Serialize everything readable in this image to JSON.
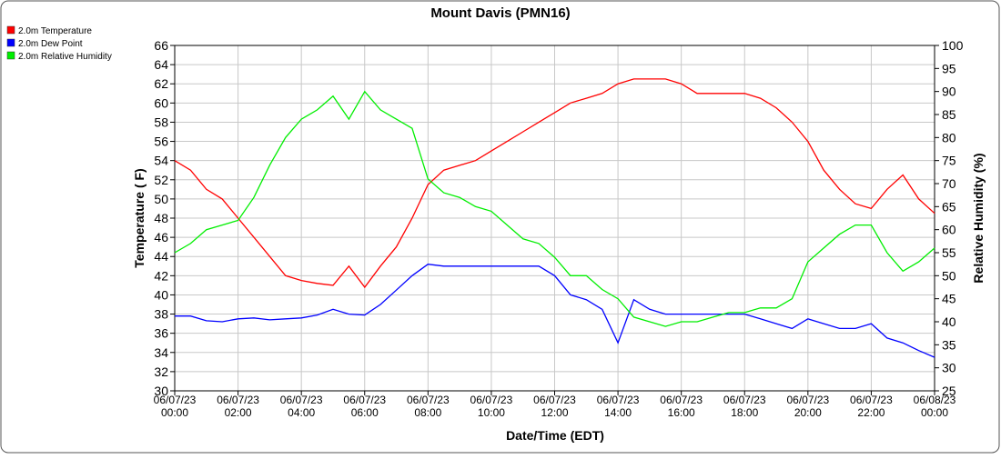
{
  "chart_data": {
    "type": "line",
    "title": "Mount Davis (PMN16)",
    "x_label": "Date/Time (EDT)",
    "y_label": "Temperature ( F)",
    "y2_label": "Relative Humidity (%)",
    "x": [
      0,
      0.5,
      1,
      1.5,
      2,
      2.5,
      3,
      3.5,
      4,
      4.5,
      5,
      5.5,
      6,
      6.5,
      7,
      7.5,
      8,
      8.5,
      9,
      9.5,
      10,
      10.5,
      11,
      11.5,
      12,
      12.5,
      13,
      13.5,
      14,
      14.5,
      15,
      15.5,
      16,
      16.5,
      17,
      17.5,
      18,
      18.5,
      19,
      19.5,
      20,
      20.5,
      21,
      21.5,
      22,
      22.5,
      23,
      23.5,
      24
    ],
    "xlim": [
      0,
      24
    ],
    "xticks": [
      {
        "value": 0,
        "label": "06/07/23\n00:00"
      },
      {
        "value": 2,
        "label": "06/07/23\n02:00"
      },
      {
        "value": 4,
        "label": "06/07/23\n04:00"
      },
      {
        "value": 6,
        "label": "06/07/23\n06:00"
      },
      {
        "value": 8,
        "label": "06/07/23\n08:00"
      },
      {
        "value": 10,
        "label": "06/07/23\n10:00"
      },
      {
        "value": 12,
        "label": "06/07/23\n12:00"
      },
      {
        "value": 14,
        "label": "06/07/23\n14:00"
      },
      {
        "value": 16,
        "label": "06/07/23\n16:00"
      },
      {
        "value": 18,
        "label": "06/07/23\n18:00"
      },
      {
        "value": 20,
        "label": "06/07/23\n20:00"
      },
      {
        "value": 22,
        "label": "06/07/23\n22:00"
      },
      {
        "value": 24,
        "label": "06/08/23\n00:00"
      }
    ],
    "ylim": [
      30,
      66
    ],
    "yticks": [
      30,
      32,
      34,
      36,
      38,
      40,
      42,
      44,
      46,
      48,
      50,
      52,
      54,
      56,
      58,
      60,
      62,
      64,
      66
    ],
    "y2lim": [
      25,
      100
    ],
    "y2ticks": [
      25,
      30,
      35,
      40,
      45,
      50,
      55,
      60,
      65,
      70,
      75,
      80,
      85,
      90,
      95,
      100
    ],
    "grid": true,
    "legend": "top-left",
    "series": [
      {
        "name": "2.0m Temperature",
        "color": "#ff0000",
        "values": [
          54,
          53,
          51,
          50,
          48,
          46,
          44,
          42,
          41.5,
          41.2,
          41,
          43,
          40.8,
          43,
          45,
          48,
          51.5,
          53,
          53.5,
          54,
          55,
          56,
          57,
          58,
          59,
          60,
          60.5,
          61,
          62,
          62.5,
          62.5,
          62.5,
          62,
          61,
          61,
          61,
          61,
          60.5,
          59.5,
          58,
          56,
          53,
          51,
          49.5,
          49,
          51,
          52.5,
          50,
          48.5
        ]
      },
      {
        "name": "2.0m Dew Point",
        "color": "#0000ff",
        "values": [
          37.8,
          37.8,
          37.3,
          37.2,
          37.5,
          37.6,
          37.4,
          37.5,
          37.6,
          37.9,
          38.5,
          38,
          37.9,
          39,
          40.5,
          42,
          43.2,
          43,
          43,
          43,
          43,
          43,
          43,
          43,
          42,
          40,
          39.5,
          38.5,
          35,
          39.5,
          38.5,
          38,
          38,
          38,
          38,
          38,
          38,
          37.5,
          37,
          36.5,
          37.5,
          37,
          36.5,
          36.5,
          37,
          35.5,
          35,
          34.2,
          33.5
        ]
      },
      {
        "name": "2.0m Relative Humidity",
        "color": "#00ee00",
        "axis": "y2",
        "values": [
          55,
          57,
          60,
          61,
          62,
          67,
          74,
          80,
          84,
          86,
          89,
          84,
          90,
          86,
          84,
          82,
          71,
          68,
          67,
          65,
          64,
          61,
          58,
          57,
          54,
          50,
          50,
          47,
          45,
          41,
          40,
          39,
          40,
          40,
          41,
          42,
          42,
          43,
          43,
          45,
          53,
          56,
          59,
          61,
          61,
          55,
          51,
          53,
          56
        ]
      }
    ]
  }
}
